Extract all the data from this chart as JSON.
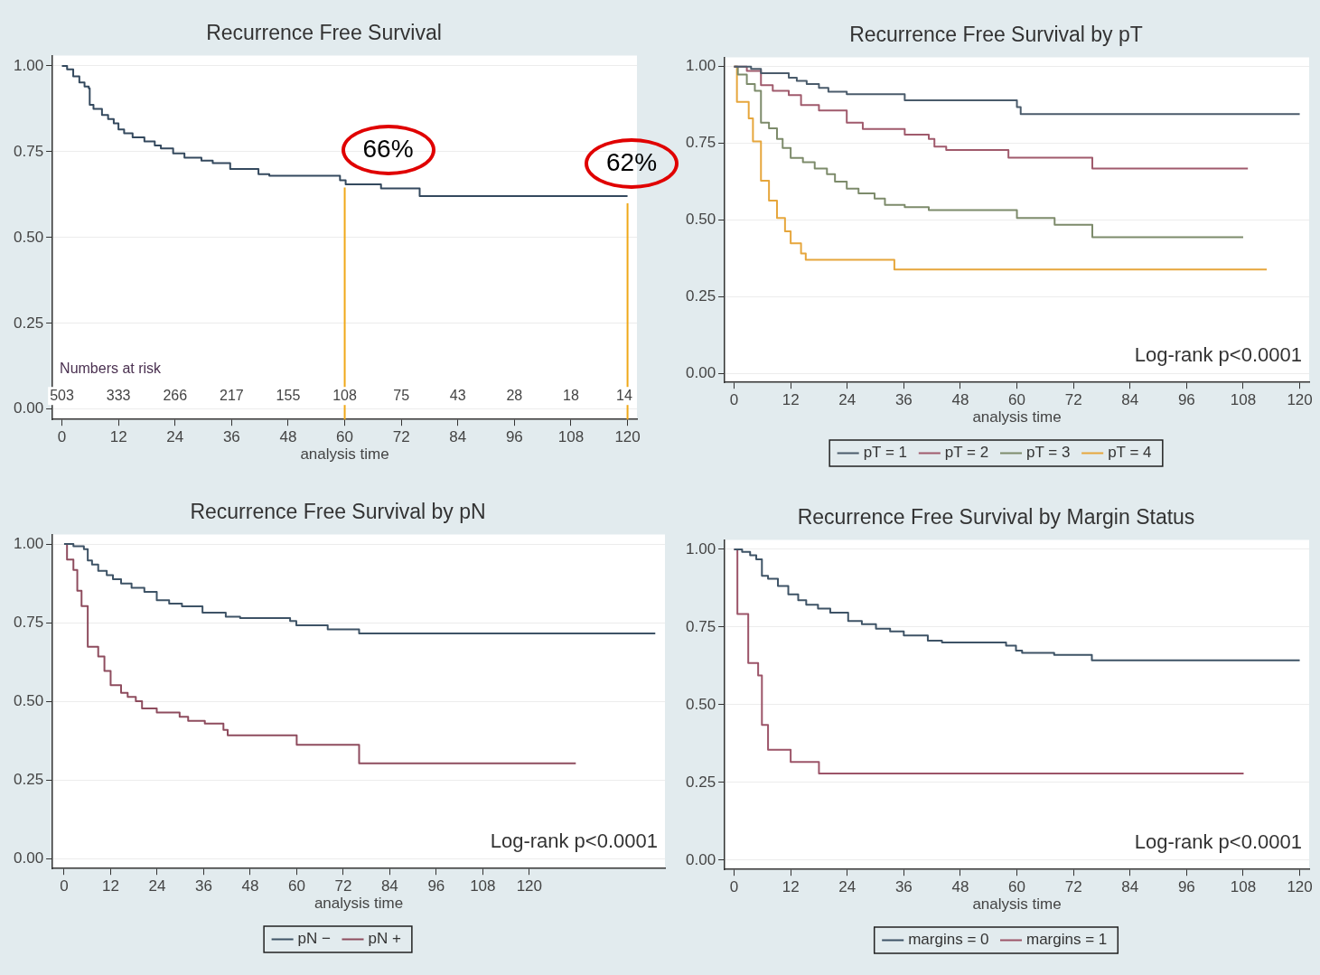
{
  "chart_data": [
    {
      "type": "step",
      "title": "Recurrence Free Survival",
      "xlabel": "analysis time",
      "xlim": [
        -2,
        122
      ],
      "ylim": [
        -0.03,
        1.03
      ],
      "xticks": [
        0,
        12,
        24,
        36,
        48,
        60,
        72,
        84,
        96,
        108,
        120
      ],
      "yticks": [
        {
          "value": 0,
          "label": "0.00"
        },
        {
          "value": 0.25,
          "label": "0.25"
        },
        {
          "value": 0.5,
          "label": "0.50"
        },
        {
          "value": 0.75,
          "label": "0.75"
        },
        {
          "value": 1,
          "label": "1.00"
        }
      ],
      "grid": "y",
      "legend": false,
      "series": [
        {
          "color": "#34495e",
          "x": [
            0,
            1.1,
            2.4,
            3.7,
            4.8,
            5.7,
            5.9,
            6.7,
            8.5,
            9.8,
            11,
            12,
            13.2,
            15,
            17.5,
            19.7,
            21,
            23.6,
            26,
            29.6,
            32,
            35.7,
            41.7,
            44,
            59,
            60.2,
            67.7,
            75.9,
            120
          ],
          "values": [
            1,
            0.99,
            0.97,
            0.952,
            0.94,
            0.935,
            0.887,
            0.875,
            0.857,
            0.845,
            0.833,
            0.815,
            0.804,
            0.792,
            0.78,
            0.768,
            0.76,
            0.745,
            0.733,
            0.724,
            0.717,
            0.7,
            0.685,
            0.68,
            0.667,
            0.655,
            0.643,
            0.621,
            0.621
          ]
        }
      ],
      "ref_lines": [
        {
          "axis": "x",
          "value": 60,
          "color": "#f0a818"
        },
        {
          "axis": "x",
          "value": 120,
          "color": "#f0a818"
        }
      ],
      "annotations": [
        {
          "text": "66%",
          "x": 60,
          "y": 0.66
        },
        {
          "text": "62%",
          "x": 120,
          "y": 0.62
        },
        "Numbers at risk",
        "503",
        "333",
        "266",
        "217",
        "155",
        "108",
        "75",
        "43",
        "28",
        "18",
        "14"
      ]
    },
    {
      "type": "step",
      "title": "Recurrence Free Survival by pT",
      "xlabel": "analysis time",
      "xlim": [
        -2,
        122
      ],
      "ylim": [
        -0.03,
        1.03
      ],
      "xticks": [
        0,
        12,
        24,
        36,
        48,
        60,
        72,
        84,
        96,
        108,
        120
      ],
      "yticks": [
        {
          "value": 0,
          "label": "0.00"
        },
        {
          "value": 0.25,
          "label": "0.25"
        },
        {
          "value": 0.5,
          "label": "0.50"
        },
        {
          "value": 0.75,
          "label": "0.75"
        },
        {
          "value": 1,
          "label": "1.00"
        }
      ],
      "grid": "y",
      "legend": "bottom",
      "series": [
        {
          "name": "pT = 1",
          "color": "#4a5b6b",
          "x": [
            0,
            3.6,
            5.7,
            11.6,
            13.3,
            15.4,
            18,
            20,
            23.9,
            36.2,
            60,
            60.8,
            120
          ],
          "values": [
            1,
            0.993,
            0.979,
            0.964,
            0.954,
            0.943,
            0.931,
            0.918,
            0.91,
            0.89,
            0.868,
            0.845,
            0.845
          ]
        },
        {
          "name": "pT = 2",
          "color": "#a05a6c",
          "x": [
            0,
            2.7,
            5.7,
            8.2,
            11.6,
            14.2,
            18,
            23.9,
            27.3,
            36.2,
            41.3,
            42.5,
            45,
            58.2,
            76,
            109
          ],
          "values": [
            1,
            0.986,
            0.94,
            0.921,
            0.907,
            0.875,
            0.857,
            0.817,
            0.797,
            0.778,
            0.764,
            0.739,
            0.728,
            0.703,
            0.668,
            0.668
          ]
        },
        {
          "name": "pT = 3",
          "color": "#7d8b6b",
          "x": [
            0,
            0.8,
            2.7,
            4.4,
            5.7,
            7.4,
            9.1,
            10.3,
            12,
            14.6,
            17.1,
            19.7,
            21.4,
            23.9,
            26.4,
            29.8,
            32,
            36.2,
            41.3,
            60,
            68,
            76,
            108
          ],
          "values": [
            1,
            0.974,
            0.943,
            0.921,
            0.817,
            0.799,
            0.764,
            0.735,
            0.702,
            0.688,
            0.668,
            0.649,
            0.625,
            0.602,
            0.587,
            0.57,
            0.549,
            0.542,
            0.532,
            0.506,
            0.484,
            0.444,
            0.444
          ]
        },
        {
          "name": "pT = 4",
          "color": "#e6a63c",
          "x": [
            0,
            0.6,
            3.1,
            4,
            5.7,
            7.4,
            9.1,
            10.8,
            12,
            14.2,
            15.2,
            34,
            113
          ],
          "values": [
            1,
            0.885,
            0.831,
            0.756,
            0.628,
            0.563,
            0.506,
            0.463,
            0.424,
            0.391,
            0.37,
            0.338,
            0.338
          ]
        }
      ],
      "annotations": [
        "Log-rank p<0.0001"
      ]
    },
    {
      "type": "step",
      "title": "Recurrence Free Survival by pN",
      "xlabel": "analysis time",
      "xlim": [
        -3,
        155
      ],
      "ylim": [
        -0.03,
        1.03
      ],
      "xticks": [
        0,
        12,
        24,
        36,
        48,
        60,
        72,
        84,
        96,
        108,
        120
      ],
      "yticks": [
        {
          "value": 0,
          "label": "0.00"
        },
        {
          "value": 0.25,
          "label": "0.25"
        },
        {
          "value": 0.5,
          "label": "0.50"
        },
        {
          "value": 0.75,
          "label": "0.75"
        },
        {
          "value": 1,
          "label": "1.00"
        }
      ],
      "grid": "y",
      "legend": "bottom",
      "series": [
        {
          "name": "pN −",
          "color": "#3e5366",
          "x": [
            0,
            2.4,
            5.1,
            6.1,
            7.2,
            8.8,
            11,
            12.6,
            14.7,
            17.4,
            20.7,
            23.9,
            27.1,
            30.4,
            35.7,
            41.7,
            45.4,
            58.3,
            59.9,
            68,
            76.1,
            152.5
          ],
          "values": [
            1,
            0.993,
            0.984,
            0.948,
            0.935,
            0.915,
            0.901,
            0.888,
            0.875,
            0.861,
            0.848,
            0.822,
            0.811,
            0.802,
            0.782,
            0.769,
            0.765,
            0.756,
            0.742,
            0.729,
            0.716,
            0.716
          ]
        },
        {
          "name": "pN +",
          "color": "#8e4c5e",
          "x": [
            0,
            0.75,
            2.4,
            3.4,
            4.5,
            6.1,
            8.8,
            10.4,
            12,
            14.7,
            16.4,
            18.5,
            20.1,
            23.9,
            29.8,
            32,
            36.3,
            41.1,
            42.2,
            60,
            76.1,
            132
          ],
          "values": [
            1,
            0.951,
            0.918,
            0.852,
            0.803,
            0.674,
            0.643,
            0.597,
            0.552,
            0.528,
            0.515,
            0.501,
            0.478,
            0.465,
            0.452,
            0.439,
            0.43,
            0.41,
            0.393,
            0.363,
            0.304,
            0.304
          ]
        }
      ],
      "annotations": [
        "Log-rank p<0.0001"
      ]
    },
    {
      "type": "step",
      "title": "Recurrence Free Survival by Margin Status",
      "xlabel": "analysis time",
      "xlim": [
        -2,
        122
      ],
      "ylim": [
        -0.03,
        1.03
      ],
      "xticks": [
        0,
        12,
        24,
        36,
        48,
        60,
        72,
        84,
        96,
        108,
        120
      ],
      "yticks": [
        {
          "value": 0,
          "label": "0.00"
        },
        {
          "value": 0.25,
          "label": "0.25"
        },
        {
          "value": 0.5,
          "label": "0.50"
        },
        {
          "value": 0.75,
          "label": "0.75"
        },
        {
          "value": 1,
          "label": "1.00"
        }
      ],
      "grid": "y",
      "legend": "bottom",
      "series": [
        {
          "name": "margins = 0",
          "color": "#3e5366",
          "x": [
            0,
            1.7,
            3.4,
            4.7,
            5.9,
            7.2,
            9.3,
            11.5,
            13.6,
            15.3,
            17.8,
            20.4,
            24.2,
            27.1,
            30.1,
            33.1,
            36,
            41.1,
            44.1,
            57.7,
            59.8,
            61.1,
            67.9,
            75.9,
            120
          ],
          "values": [
            1,
            0.992,
            0.981,
            0.968,
            0.915,
            0.905,
            0.882,
            0.855,
            0.836,
            0.822,
            0.809,
            0.796,
            0.769,
            0.759,
            0.745,
            0.736,
            0.723,
            0.706,
            0.7,
            0.69,
            0.674,
            0.667,
            0.66,
            0.643,
            0.643
          ]
        },
        {
          "name": "margins = 1",
          "color": "#9c5468",
          "x": [
            0,
            0.7,
            3,
            5.1,
            5.9,
            7.2,
            12,
            18,
            108.1
          ],
          "values": [
            1,
            0.792,
            0.634,
            0.594,
            0.435,
            0.355,
            0.316,
            0.279,
            0.279
          ]
        }
      ],
      "annotations": [
        "Log-rank p<0.0001"
      ]
    }
  ]
}
